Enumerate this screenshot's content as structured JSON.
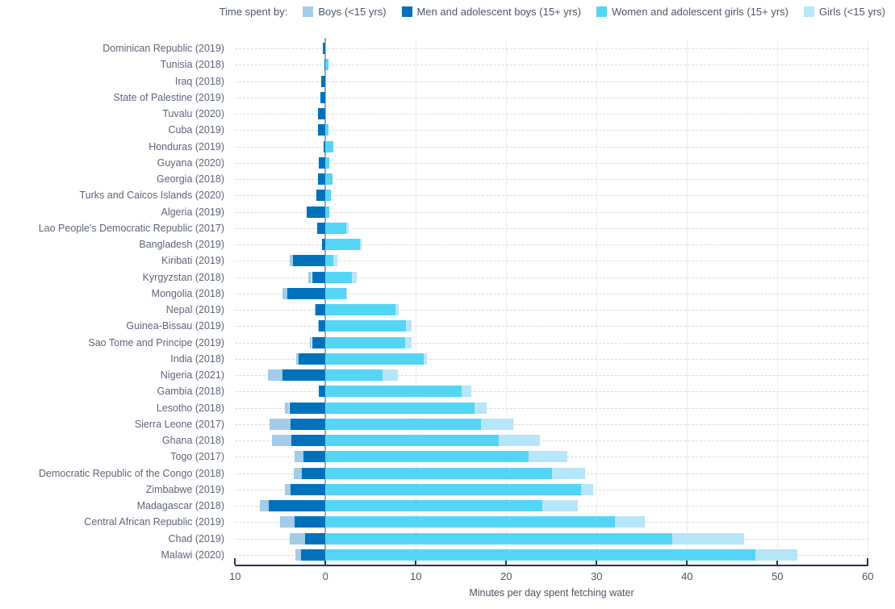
{
  "legend": {
    "prefix": "Time spent by:",
    "items": [
      {
        "key": "boys",
        "label": "Boys (<15 yrs)",
        "color": "#A3CCE9"
      },
      {
        "key": "men",
        "label": "Men and adolescent boys (15+ yrs)",
        "color": "#0072BC"
      },
      {
        "key": "women",
        "label": "Women and adolescent girls (15+ yrs)",
        "color": "#54D5F6"
      },
      {
        "key": "girls",
        "label": "Girls (<15 yrs)",
        "color": "#B6E6FA"
      }
    ]
  },
  "axis": {
    "xlabel": "Minutes per day spent fetching water",
    "ticks": [
      -10,
      0,
      10,
      20,
      30,
      40,
      50,
      60
    ],
    "tick_labels": [
      "10",
      "0",
      "10",
      "20",
      "30",
      "40",
      "50",
      "60"
    ]
  },
  "chart_data": {
    "type": "bar",
    "orientation": "horizontal-diverging-stacked",
    "title": "",
    "xlabel": "Minutes per day spent fetching water",
    "xlim": [
      -10,
      60
    ],
    "grid": "dashed-row-lines and light vertical lines every 10 minutes",
    "legend_position": "top",
    "note": "Male series (men, boys) extend left of zero; female series (women, girls) extend right. Values are minutes per day.",
    "categories": [
      "Dominican Republic (2019)",
      "Tunisia (2018)",
      "Iraq (2018)",
      "State of Palestine (2019)",
      "Tuvalu (2020)",
      "Cuba (2019)",
      "Honduras (2019)",
      "Guyana (2020)",
      "Georgia (2018)",
      "Turks and Caicos Islands (2020)",
      "Algeria (2019)",
      "Lao People's Democratic Republic (2017)",
      "Bangladesh (2019)",
      "Kiribati (2019)",
      "Kyrgyzstan (2018)",
      "Mongolia (2018)",
      "Nepal (2019)",
      "Guinea-Bissau (2019)",
      "Sao Tome and Principe (2019)",
      "India (2018)",
      "Nigeria (2021)",
      "Gambia (2018)",
      "Lesotho (2018)",
      "Sierra Leone (2017)",
      "Ghana (2018)",
      "Togo (2017)",
      "Democratic Republic of the Congo (2018)",
      "Zimbabwe (2019)",
      "Madagascar (2018)",
      "Central African Republic (2019)",
      "Chad (2019)",
      "Malawi (2020)"
    ],
    "series": [
      {
        "key": "men",
        "name": "Men and adolescent boys (15+ yrs)",
        "color": "#0072BC",
        "direction": "left",
        "values": [
          0.3,
          0.1,
          0.5,
          0.6,
          0.8,
          0.8,
          0.2,
          0.7,
          0.8,
          1.0,
          2.1,
          0.9,
          0.4,
          3.6,
          1.5,
          4.2,
          1.1,
          0.7,
          1.5,
          3.0,
          4.8,
          0.7,
          4.0,
          3.9,
          3.8,
          2.4,
          2.6,
          3.9,
          6.3,
          3.4,
          2.3,
          2.7
        ]
      },
      {
        "key": "boys",
        "name": "Boys (<15 yrs)",
        "color": "#A3CCE9",
        "direction": "left",
        "values": [
          0,
          0,
          0,
          0,
          0,
          0,
          0,
          0,
          0,
          0,
          0,
          0,
          0,
          0.4,
          0.4,
          0.6,
          0.1,
          0.1,
          0.2,
          0.2,
          1.6,
          0,
          0.5,
          2.3,
          2.1,
          1.0,
          0.9,
          0.6,
          1.0,
          1.6,
          1.7,
          0.6
        ]
      },
      {
        "key": "women",
        "name": "Women and adolescent girls (15+ yrs)",
        "color": "#54D5F6",
        "direction": "right",
        "values": [
          0.1,
          0.3,
          0.1,
          0.1,
          0.1,
          0.3,
          0.9,
          0.4,
          0.8,
          0.6,
          0.4,
          2.3,
          3.8,
          0.9,
          2.9,
          2.3,
          7.7,
          8.9,
          8.8,
          10.9,
          6.3,
          15.1,
          16.5,
          17.2,
          19.2,
          22.5,
          25.1,
          28.3,
          24.0,
          32.0,
          38.4,
          47.6
        ]
      },
      {
        "key": "girls",
        "name": "Girls (<15 yrs)",
        "color": "#B6E6FA",
        "direction": "right",
        "values": [
          0,
          0,
          0,
          0,
          0,
          0,
          0,
          0,
          0,
          0,
          0,
          0.3,
          0.2,
          0.4,
          0.6,
          0.1,
          0.4,
          0.6,
          0.7,
          0.3,
          1.7,
          1.0,
          1.3,
          3.6,
          4.5,
          4.3,
          3.6,
          1.3,
          3.9,
          3.3,
          7.9,
          4.6
        ]
      }
    ]
  }
}
